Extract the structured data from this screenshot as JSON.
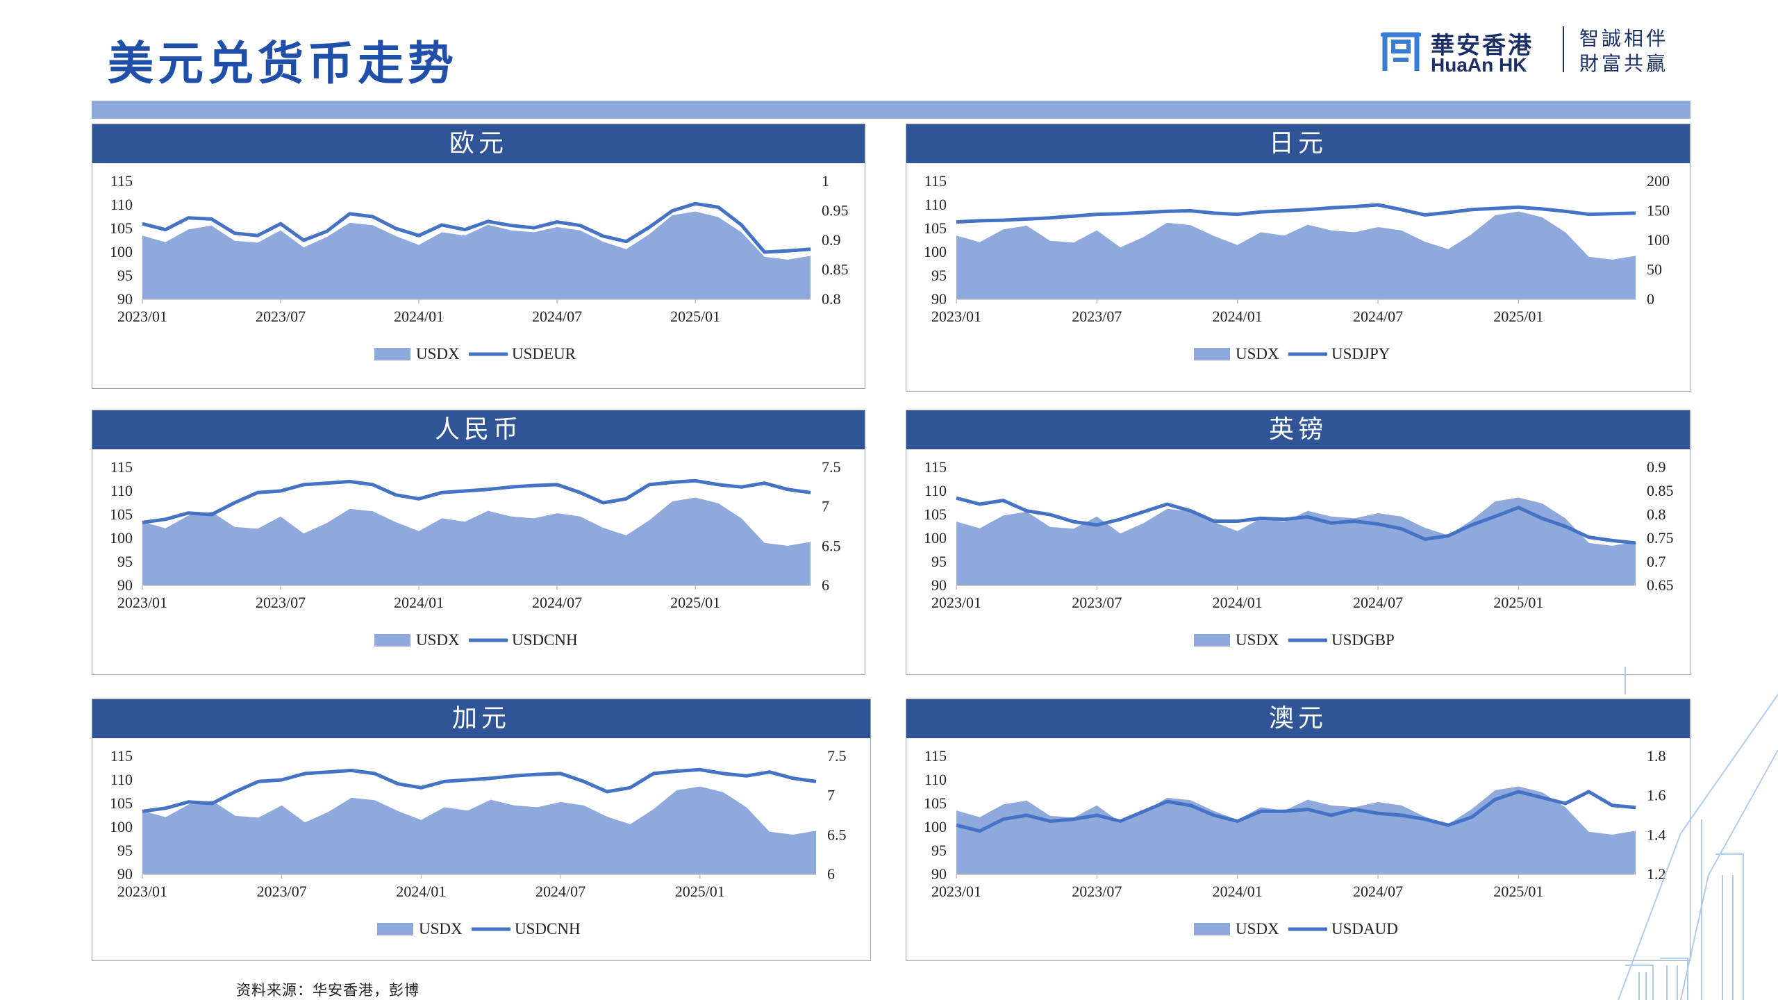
{
  "page": {
    "title": "美元兑货币走势",
    "source_note": "资料来源：华安香港，彭博"
  },
  "brand": {
    "name_cn": "華安香港",
    "name_en": "HuaAn HK",
    "slogan_line1": "智誠相伴",
    "slogan_line2": "財富共贏",
    "icon": "huaan-logo-icon"
  },
  "colors": {
    "header_bg": "#2f5597",
    "area_fill": "#8fa9dc",
    "line": "#4472c4",
    "band": "#8fa9dc",
    "title": "#1f4fa8"
  },
  "chart_data": [
    {
      "id": "eur",
      "title": "欧元",
      "type": "area+line",
      "x_ticks": [
        "2023/01",
        "2023/07",
        "2024/01",
        "2024/07",
        "2025/01"
      ],
      "left_axis": {
        "min": 90,
        "max": 115,
        "ticks": [
          "115",
          "110",
          "105",
          "100",
          "95",
          "90"
        ]
      },
      "right_axis": {
        "min": 0.8,
        "max": 1.0,
        "ticks": [
          "1",
          "0.95",
          "0.9",
          "0.85",
          "0.8"
        ]
      },
      "series": [
        {
          "name": "USDX",
          "kind": "area",
          "axis": "left",
          "values": [
            103.5,
            102.1,
            104.8,
            105.6,
            102.4,
            102.0,
            104.6,
            101.0,
            103.2,
            106.2,
            105.7,
            103.4,
            101.5,
            104.2,
            103.5,
            105.8,
            104.6,
            104.2,
            105.3,
            104.6,
            102.2,
            100.6,
            103.8,
            107.8,
            108.6,
            107.4,
            104.2,
            99.0,
            98.4,
            99.2
          ]
        },
        {
          "name": "USDEUR",
          "kind": "line",
          "axis": "right",
          "values": [
            0.928,
            0.918,
            0.938,
            0.936,
            0.912,
            0.908,
            0.928,
            0.9,
            0.915,
            0.945,
            0.94,
            0.92,
            0.908,
            0.926,
            0.918,
            0.932,
            0.925,
            0.921,
            0.931,
            0.925,
            0.907,
            0.898,
            0.922,
            0.95,
            0.962,
            0.956,
            0.926,
            0.88,
            0.882,
            0.885
          ]
        }
      ]
    },
    {
      "id": "jpy",
      "title": "日元",
      "type": "area+line",
      "x_ticks": [
        "2023/01",
        "2023/07",
        "2024/01",
        "2024/07",
        "2025/01"
      ],
      "left_axis": {
        "min": 90,
        "max": 115,
        "ticks": [
          "115",
          "110",
          "105",
          "100",
          "95",
          "90"
        ]
      },
      "right_axis": {
        "min": 0,
        "max": 200,
        "ticks": [
          "200",
          "150",
          "100",
          "50",
          "0"
        ]
      },
      "series": [
        {
          "name": "USDX",
          "kind": "area",
          "axis": "left",
          "values": [
            103.5,
            102.1,
            104.8,
            105.6,
            102.4,
            102.0,
            104.6,
            101.0,
            103.2,
            106.2,
            105.7,
            103.4,
            101.5,
            104.2,
            103.5,
            105.8,
            104.6,
            104.2,
            105.3,
            104.6,
            102.2,
            100.6,
            103.8,
            107.8,
            108.6,
            107.4,
            104.2,
            99.0,
            98.4,
            99.2
          ]
        },
        {
          "name": "USDJPY",
          "kind": "line",
          "axis": "right",
          "values": [
            131,
            133,
            134,
            136,
            138,
            141,
            144,
            145,
            147,
            149,
            150,
            146,
            144,
            148,
            150,
            152,
            155,
            157,
            160,
            152,
            143,
            147,
            152,
            154,
            156,
            153,
            149,
            144,
            145,
            146
          ]
        }
      ]
    },
    {
      "id": "cnh",
      "title": "人民币",
      "type": "area+line",
      "x_ticks": [
        "2023/01",
        "2023/07",
        "2024/01",
        "2024/07",
        "2025/01"
      ],
      "left_axis": {
        "min": 90,
        "max": 115,
        "ticks": [
          "115",
          "110",
          "105",
          "100",
          "95",
          "90"
        ]
      },
      "right_axis": {
        "min": 6,
        "max": 7.5,
        "ticks": [
          "7.5",
          "7",
          "6.5",
          "6"
        ]
      },
      "series": [
        {
          "name": "USDX",
          "kind": "area",
          "axis": "left",
          "values": [
            103.5,
            102.1,
            104.8,
            105.6,
            102.4,
            102.0,
            104.6,
            101.0,
            103.2,
            106.2,
            105.7,
            103.4,
            101.5,
            104.2,
            103.5,
            105.8,
            104.6,
            104.2,
            105.3,
            104.6,
            102.2,
            100.6,
            103.8,
            107.8,
            108.6,
            107.4,
            104.2,
            99.0,
            98.4,
            99.2
          ]
        },
        {
          "name": "USDCNH",
          "kind": "line",
          "axis": "right",
          "values": [
            6.8,
            6.84,
            6.92,
            6.9,
            7.05,
            7.18,
            7.2,
            7.28,
            7.3,
            7.32,
            7.28,
            7.15,
            7.1,
            7.18,
            7.2,
            7.22,
            7.25,
            7.27,
            7.28,
            7.18,
            7.05,
            7.1,
            7.28,
            7.31,
            7.33,
            7.28,
            7.25,
            7.3,
            7.22,
            7.18
          ]
        }
      ]
    },
    {
      "id": "gbp",
      "title": "英镑",
      "type": "area+line",
      "x_ticks": [
        "2023/01",
        "2023/07",
        "2024/01",
        "2024/07",
        "2025/01"
      ],
      "left_axis": {
        "min": 90,
        "max": 115,
        "ticks": [
          "115",
          "110",
          "105",
          "100",
          "95",
          "90"
        ]
      },
      "right_axis": {
        "min": 0.65,
        "max": 0.9,
        "ticks": [
          "0.9",
          "0.85",
          "0.8",
          "0.75",
          "0.7",
          "0.65"
        ]
      },
      "series": [
        {
          "name": "USDX",
          "kind": "area",
          "axis": "left",
          "values": [
            103.5,
            102.1,
            104.8,
            105.6,
            102.4,
            102.0,
            104.6,
            101.0,
            103.2,
            106.2,
            105.7,
            103.4,
            101.5,
            104.2,
            103.5,
            105.8,
            104.6,
            104.2,
            105.3,
            104.6,
            102.2,
            100.6,
            103.8,
            107.8,
            108.6,
            107.4,
            104.2,
            99.0,
            98.4,
            99.2
          ]
        },
        {
          "name": "USDGBP",
          "kind": "line",
          "axis": "right",
          "values": [
            0.835,
            0.822,
            0.83,
            0.808,
            0.8,
            0.785,
            0.778,
            0.79,
            0.806,
            0.822,
            0.808,
            0.786,
            0.786,
            0.792,
            0.79,
            0.795,
            0.782,
            0.786,
            0.78,
            0.77,
            0.748,
            0.755,
            0.778,
            0.796,
            0.815,
            0.792,
            0.775,
            0.752,
            0.745,
            0.74
          ]
        }
      ]
    },
    {
      "id": "cad",
      "title": "加元",
      "type": "area+line",
      "x_ticks": [
        "2023/01",
        "2023/07",
        "2024/01",
        "2024/07",
        "2025/01"
      ],
      "left_axis": {
        "min": 90,
        "max": 115,
        "ticks": [
          "115",
          "110",
          "105",
          "100",
          "95",
          "90"
        ]
      },
      "right_axis": {
        "min": 6,
        "max": 7.5,
        "ticks": [
          "7.5",
          "7",
          "6.5",
          "6"
        ]
      },
      "series": [
        {
          "name": "USDX",
          "kind": "area",
          "axis": "left",
          "values": [
            103.5,
            102.1,
            104.8,
            105.6,
            102.4,
            102.0,
            104.6,
            101.0,
            103.2,
            106.2,
            105.7,
            103.4,
            101.5,
            104.2,
            103.5,
            105.8,
            104.6,
            104.2,
            105.3,
            104.6,
            102.2,
            100.6,
            103.8,
            107.8,
            108.6,
            107.4,
            104.2,
            99.0,
            98.4,
            99.2
          ]
        },
        {
          "name": "USDCNH",
          "kind": "line",
          "axis": "right",
          "values": [
            6.8,
            6.84,
            6.92,
            6.9,
            7.05,
            7.18,
            7.2,
            7.28,
            7.3,
            7.32,
            7.28,
            7.15,
            7.1,
            7.18,
            7.2,
            7.22,
            7.25,
            7.27,
            7.28,
            7.18,
            7.05,
            7.1,
            7.28,
            7.31,
            7.33,
            7.28,
            7.25,
            7.3,
            7.22,
            7.18
          ]
        }
      ]
    },
    {
      "id": "aud",
      "title": "澳元",
      "type": "area+line",
      "x_ticks": [
        "2023/01",
        "2023/07",
        "2024/01",
        "2024/07",
        "2025/01"
      ],
      "left_axis": {
        "min": 90,
        "max": 115,
        "ticks": [
          "115",
          "110",
          "105",
          "100",
          "95",
          "90"
        ]
      },
      "right_axis": {
        "min": 1.2,
        "max": 1.8,
        "ticks": [
          "1.8",
          "1.6",
          "1.4",
          "1.2"
        ]
      },
      "series": [
        {
          "name": "USDX",
          "kind": "area",
          "axis": "left",
          "values": [
            103.5,
            102.1,
            104.8,
            105.6,
            102.4,
            102.0,
            104.6,
            101.0,
            103.2,
            106.2,
            105.7,
            103.4,
            101.5,
            104.2,
            103.5,
            105.8,
            104.6,
            104.2,
            105.3,
            104.6,
            102.2,
            100.6,
            103.8,
            107.8,
            108.6,
            107.4,
            104.2,
            99.0,
            98.4,
            99.2
          ]
        },
        {
          "name": "USDAUD",
          "kind": "line",
          "axis": "right",
          "values": [
            1.45,
            1.42,
            1.48,
            1.5,
            1.47,
            1.48,
            1.5,
            1.47,
            1.52,
            1.57,
            1.55,
            1.5,
            1.47,
            1.52,
            1.52,
            1.53,
            1.5,
            1.53,
            1.51,
            1.5,
            1.48,
            1.45,
            1.49,
            1.58,
            1.62,
            1.59,
            1.56,
            1.62,
            1.55,
            1.54
          ]
        }
      ]
    }
  ]
}
